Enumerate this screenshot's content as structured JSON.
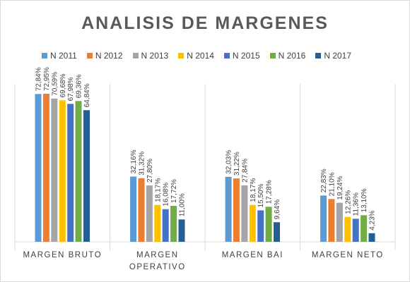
{
  "chart_data": {
    "type": "bar",
    "title": "ANALISIS DE MARGENES",
    "categories": [
      [
        "MARGEN BRUTO"
      ],
      [
        "MARGEN",
        "OPERATIVO"
      ],
      [
        "MARGEN BAI"
      ],
      [
        "MARGEN NETO"
      ]
    ],
    "series": [
      {
        "name": "N 2011",
        "color": "#5b9bd5",
        "values": [
          72.84,
          32.16,
          32.03,
          22.83
        ],
        "labels": [
          "72,84%",
          "32,16%",
          "32,03%",
          "22,83%"
        ]
      },
      {
        "name": "N 2012",
        "color": "#ed7d31",
        "values": [
          72.95,
          31.32,
          31.22,
          21.1
        ],
        "labels": [
          "72,95%",
          "31,32%",
          "31,22%",
          "21,10%"
        ]
      },
      {
        "name": "N 2013",
        "color": "#a5a5a5",
        "values": [
          70.59,
          27.8,
          27.84,
          19.24
        ],
        "labels": [
          "70,59%",
          "27,80%",
          "27,84%",
          "19,24%"
        ]
      },
      {
        "name": "N 2014",
        "color": "#ffc000",
        "values": [
          69.68,
          18.17,
          18.17,
          12.26
        ],
        "labels": [
          "69,68%",
          "18,17%",
          "18,17%",
          "12,26%"
        ]
      },
      {
        "name": "N 2015",
        "color": "#4472c4",
        "values": [
          67.98,
          16.08,
          15.5,
          11.36
        ],
        "labels": [
          "67,98%",
          "16,08%",
          "15,50%",
          "11,36%"
        ]
      },
      {
        "name": "N 2016",
        "color": "#70ad47",
        "values": [
          69.36,
          17.72,
          17.28,
          13.1
        ],
        "labels": [
          "69,36%",
          "17,72%",
          "17,28%",
          "13,10%"
        ]
      },
      {
        "name": "N 2017",
        "color": "#255e91",
        "values": [
          64.84,
          11.0,
          9.64,
          4.23
        ],
        "labels": [
          "64,84%",
          "11,00%",
          "9,64%",
          "4,23%"
        ]
      }
    ],
    "ylim": [
      0,
      72.95
    ],
    "legend": "top",
    "grid": false,
    "category_separators": true
  }
}
